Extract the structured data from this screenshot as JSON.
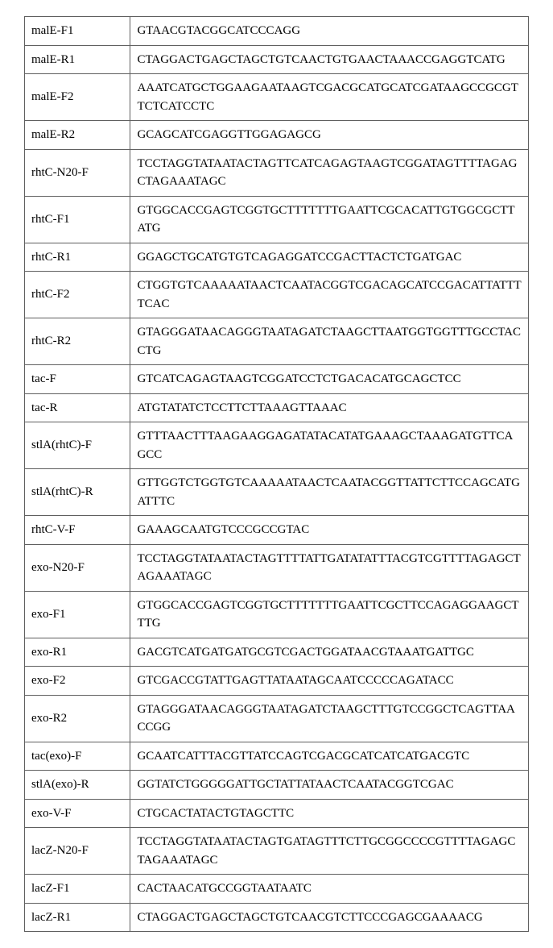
{
  "table": {
    "border_color": "#606060",
    "background_color": "#ffffff",
    "font_family": "Times New Roman",
    "font_size_pt": 11,
    "columns": [
      {
        "key": "name",
        "width_pct": 21
      },
      {
        "key": "sequence",
        "width_pct": 79
      }
    ],
    "rows": [
      {
        "name": "malE-F1",
        "sequence": "GTAACGTACGGCATCCCAGG"
      },
      {
        "name": "malE-R1",
        "sequence": "CTAGGACTGAGCTAGCTGTCAACTGTGAACTAAACCGAGGTCATG"
      },
      {
        "name": "malE-F2",
        "sequence": "AAATCATGCTGGAAGAATAAGTCGACGCATGCATCGATAAGCCGCGTTCTCATCCTC"
      },
      {
        "name": "malE-R2",
        "sequence": "GCAGCATCGAGGTTGGAGAGCG"
      },
      {
        "name": "rhtC-N20-F",
        "sequence": "TCCTAGGTATAATACTAGTTCATCAGAGTAAGTCGGATAGTTTTAGAGCTAGAAATAGC"
      },
      {
        "name": "rhtC-F1",
        "sequence": "GTGGCACCGAGTCGGTGCTTTTTTTGAATTCGCACATTGTGGCGCTTATG"
      },
      {
        "name": "rhtC-R1",
        "sequence": "GGAGCTGCATGTGTCAGAGGATCCGACTTACTCTGATGAC"
      },
      {
        "name": "rhtC-F2",
        "sequence": "CTGGTGTCAAAAATAACTCAATACGGTCGACAGCATCCGACATTATTTTCAC"
      },
      {
        "name": "rhtC-R2",
        "sequence": "GTAGGGATAACAGGGTAATAGATCTAAGCTTAATGGTGGTTTGCCTACCTG"
      },
      {
        "name": "tac-F",
        "sequence": "GTCATCAGAGTAAGTCGGATCCTCTGACACATGCAGCTCC"
      },
      {
        "name": "tac-R",
        "sequence": "ATGTATATCTCCTTCTTAAAGTTAAAC"
      },
      {
        "name": "stlA(rhtC)-F",
        "sequence": "GTTTAACTTTAAGAAGGAGATATACATATGAAAGCTAAAGATGTTCAGCC"
      },
      {
        "name": "stlA(rhtC)-R",
        "sequence": "GTTGGTCTGGTGTCAAAAATAACTCAATACGGTTATTCTTCCAGCATGATTTC"
      },
      {
        "name": "rhtC-V-F",
        "sequence": "GAAAGCAATGTCCCGCCGTAC"
      },
      {
        "name": "exo-N20-F",
        "sequence": "TCCTAGGTATAATACTAGTTTTATTGATATATTTACGTCGTTTTAGAGCTAGAAATAGC"
      },
      {
        "name": "exo-F1",
        "sequence": "GTGGCACCGAGTCGGTGCTTTTTTTGAATTCGCTTCCAGAGGAAGCTTTG"
      },
      {
        "name": "exo-R1",
        "sequence": "GACGTCATGATGATGCGTCGACTGGATAACGTAAATGATTGC"
      },
      {
        "name": "exo-F2",
        "sequence": "GTCGACCGTATTGAGTTATAATAGCAATCCCCCAGATACC"
      },
      {
        "name": "exo-R2",
        "sequence": "GTAGGGATAACAGGGTAATAGATCTAAGCTTTGTCCGGCTCAGTTAACCGG"
      },
      {
        "name": "tac(exo)-F",
        "sequence": "GCAATCATTTACGTTATCCAGTCGACGCATCATCATGACGTC"
      },
      {
        "name": "stlA(exo)-R",
        "sequence": "GGTATCTGGGGGATTGCTATTATAACTCAATACGGTCGAC"
      },
      {
        "name": "exo-V-F",
        "sequence": "CTGCACTATACTGTAGCTTC"
      },
      {
        "name": "lacZ-N20-F",
        "sequence": "TCCTAGGTATAATACTAGTGATAGTTTCTTGCGGCCCCGTTTTAGAGCTAGAAATAGC"
      },
      {
        "name": "lacZ-F1",
        "sequence": "CACTAACATGCCGGTAATAATC"
      },
      {
        "name": "lacZ-R1",
        "sequence": "CTAGGACTGAGCTAGCTGTCAACGTCTTCCCGAGCGAAAACG"
      }
    ]
  }
}
